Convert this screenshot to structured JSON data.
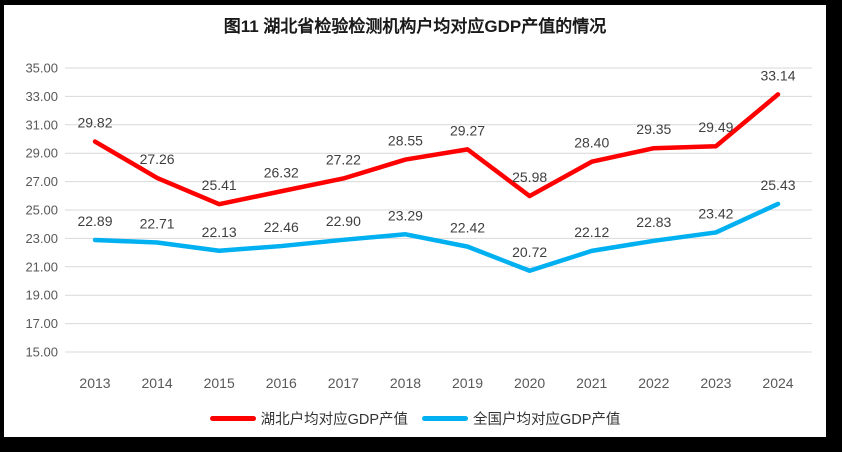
{
  "chart": {
    "title": "图11  湖北省检验检测机构户均对应GDP产值的情况"
  },
  "chart_data": {
    "type": "line",
    "title": "图11  湖北省检验检测机构户均对应GDP产值的情况",
    "categories": [
      "2013",
      "2014",
      "2015",
      "2016",
      "2017",
      "2018",
      "2019",
      "2020",
      "2021",
      "2022",
      "2023",
      "2024"
    ],
    "series": [
      {
        "name": "湖北户均对应GDP产值",
        "color": "#FF0000",
        "values": [
          29.82,
          27.26,
          25.41,
          26.32,
          27.22,
          28.55,
          29.27,
          25.98,
          28.4,
          29.35,
          29.49,
          33.14
        ]
      },
      {
        "name": "全国户均对应GDP产值",
        "color": "#00B0F0",
        "values": [
          22.89,
          22.71,
          22.13,
          22.46,
          22.9,
          23.29,
          22.42,
          20.72,
          22.12,
          22.83,
          23.42,
          25.43
        ]
      }
    ],
    "xlabel": "",
    "ylabel": "",
    "ylim": [
      15,
      35
    ],
    "ytick_step": 2,
    "ytick_format_decimals": 2,
    "grid": true,
    "legend_position": "bottom"
  },
  "colors": {
    "grid": "#D9D9D9",
    "tick_text": "#595959",
    "data_label_text": "#3F3F3F",
    "frame": "#000000",
    "background": "#FFFFFF"
  }
}
